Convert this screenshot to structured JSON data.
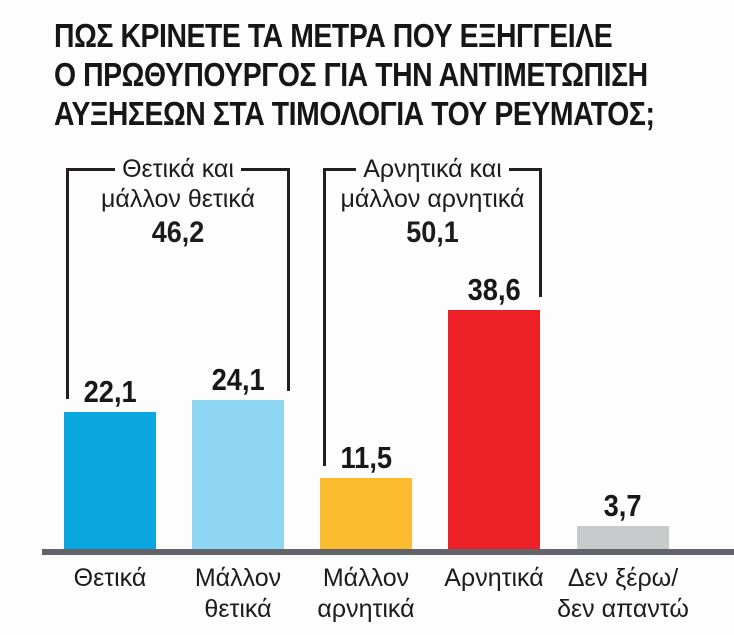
{
  "title": {
    "lines": [
      "ΠΩΣ ΚΡΙΝΕΤΕ ΤΑ ΜΕΤΡΑ ΠΟΥ ΕΞΗΓΓΕΙΛΕ",
      "Ο ΠΡΩΘΥΠΟΥΡΓΟΣ ΓΙΑ ΤΗΝ ΑΝΤΙΜΕΤΩΠΙΣΗ",
      "ΑΥΞΗΣΕΩΝ ΣΤΑ ΤΙΜΟΛΟΓΙΑ ΤΟΥ ΡΕΥΜΑΤΟΣ;"
    ]
  },
  "chart_data": {
    "type": "bar",
    "title": "ΠΩΣ ΚΡΙΝΕΤΕ ΤΑ ΜΕΤΡΑ ΠΟΥ ΕΞΗΓΓΕΙΛΕ Ο ΠΡΩΘΥΠΟΥΡΓΟΣ ΓΙΑ ΤΗΝ ΑΝΤΙΜΕΤΩΠΙΣΗ ΑΥΞΗΣΕΩΝ ΣΤΑ ΤΙΜΟΛΟΓΙΑ ΤΟΥ ΡΕΥΜΑΤΟΣ;",
    "categories": [
      "Θετικά",
      "Μάλλον θετικά",
      "Μάλλον αρνητικά",
      "Αρνητικά",
      "Δεν ξέρω/δεν απαντώ"
    ],
    "cat_lines": [
      [
        "Θετικά",
        ""
      ],
      [
        "Μάλλον",
        "θετικά"
      ],
      [
        "Μάλλον",
        "αρνητικά"
      ],
      [
        "Αρνητικά",
        ""
      ],
      [
        "Δεν ξέρω/",
        "δεν απαντώ"
      ]
    ],
    "values": [
      22.1,
      24.1,
      11.5,
      38.6,
      3.7
    ],
    "value_labels": [
      "22,1",
      "24,1",
      "11,5",
      "38,6",
      "3,7"
    ],
    "colors": [
      "#0aa7e1",
      "#8ed6f4",
      "#fcbc2f",
      "#ee2027",
      "#c9cacc"
    ],
    "groups": [
      {
        "line1": "Θετικά και",
        "line2": "μάλλον θετικά",
        "value": 46.2,
        "value_label": "46,2",
        "bars": [
          "Θετικά",
          "Μάλλον θετικά"
        ]
      },
      {
        "line1": "Αρνητικά και",
        "line2": "μάλλον αρνητικά",
        "value": 50.1,
        "value_label": "50,1",
        "bars": [
          "Μάλλον αρνητικά",
          "Αρνητικά"
        ]
      }
    ],
    "ylim": [
      0,
      40
    ],
    "grid": false,
    "legend": "none",
    "axis_color": "#636467",
    "text_color": "#1c1c1e"
  }
}
